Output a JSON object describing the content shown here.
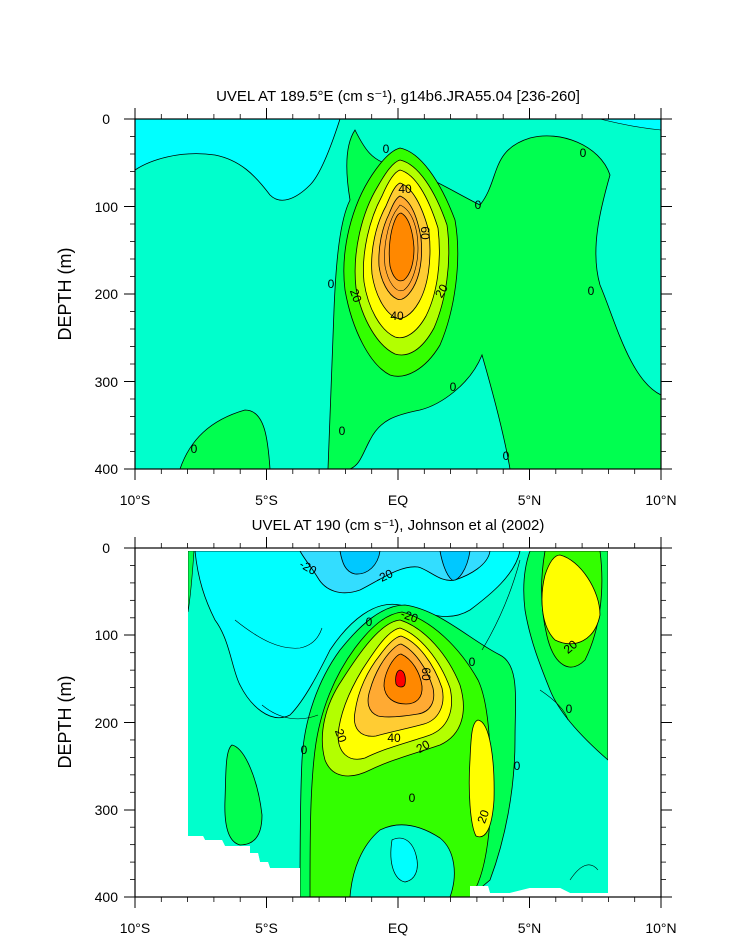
{
  "chart_data": [
    {
      "type": "contour",
      "title": "UVEL AT 189.5°E (cm s⁻¹), g14b6.JRA55.04 [236-260]",
      "ylabel": "DEPTH (m)",
      "x_ticks": [
        "10°S",
        "5°S",
        "EQ",
        "5°N",
        "10°N"
      ],
      "y_ticks": [
        "0",
        "100",
        "200",
        "300",
        "400"
      ],
      "xlim": [
        -10,
        10
      ],
      "ylim": [
        0,
        400
      ],
      "y_reversed": true,
      "contour_interval": 10,
      "contour_labels": [
        {
          "text": "0",
          "x": -0.5,
          "y": 35
        },
        {
          "text": "0",
          "x": 7,
          "y": 40
        },
        {
          "text": "40",
          "x": 0.2,
          "y": 80
        },
        {
          "text": "0",
          "x": 3,
          "y": 100
        },
        {
          "text": "60",
          "x": 0.8,
          "y": 130
        },
        {
          "text": "0",
          "x": -2.5,
          "y": 190
        },
        {
          "text": "20",
          "x": -1.6,
          "y": 202
        },
        {
          "text": "20",
          "x": 1.8,
          "y": 197
        },
        {
          "text": "0",
          "x": 7.3,
          "y": 197
        },
        {
          "text": "40",
          "x": -0.1,
          "y": 225
        },
        {
          "text": "0",
          "x": 2,
          "y": 305
        },
        {
          "text": "0",
          "x": -2,
          "y": 355
        },
        {
          "text": "0",
          "x": -7.8,
          "y": 375
        },
        {
          "text": "0",
          "x": 4,
          "y": 385
        }
      ],
      "core_max_approx": 70
    },
    {
      "type": "contour",
      "title": "UVEL AT 190 (cm s⁻¹), Johnson et al (2002)",
      "ylabel": "DEPTH (m)",
      "x_ticks": [
        "10°S",
        "5°S",
        "EQ",
        "5°N",
        "10°N"
      ],
      "y_ticks": [
        "0",
        "100",
        "200",
        "300",
        "400"
      ],
      "xlim": [
        -10,
        10
      ],
      "ylim": [
        0,
        400
      ],
      "y_reversed": true,
      "data_extent_lat": [
        -8,
        8
      ],
      "contour_interval": 10,
      "contour_labels": [
        {
          "text": "-20",
          "x": -3.5,
          "y": 25
        },
        {
          "text": "-20",
          "x": -0.5,
          "y": 35
        },
        {
          "text": "-20",
          "x": 0.3,
          "y": 80
        },
        {
          "text": "0",
          "x": -1.1,
          "y": 85
        },
        {
          "text": "0",
          "x": 2.8,
          "y": 130
        },
        {
          "text": "20",
          "x": 6.5,
          "y": 115
        },
        {
          "text": "60",
          "x": 0.8,
          "y": 150
        },
        {
          "text": "0",
          "x": 6.3,
          "y": 185
        },
        {
          "text": "20",
          "x": -2.4,
          "y": 213
        },
        {
          "text": "40",
          "x": -0.2,
          "y": 215
        },
        {
          "text": "20",
          "x": 0.9,
          "y": 228
        },
        {
          "text": "0",
          "x": -3.6,
          "y": 233
        },
        {
          "text": "0",
          "x": 4.6,
          "y": 247
        },
        {
          "text": "0",
          "x": 0.4,
          "y": 287
        },
        {
          "text": "20",
          "x": 3.3,
          "y": 310
        }
      ],
      "core_max_approx": 70
    }
  ],
  "colors": {
    "neg30": "#00c8ff",
    "neg20": "#33ddff",
    "neg10": "#00ffff",
    "zero": "#00ffcc",
    "pos0": "#00ff50",
    "pos10": "#33ff00",
    "pos20": "#b3ff00",
    "pos30": "#ffff00",
    "pos40": "#ffcc33",
    "pos50": "#ffaa33",
    "pos60": "#ff8800",
    "pos70": "#ff0000"
  }
}
